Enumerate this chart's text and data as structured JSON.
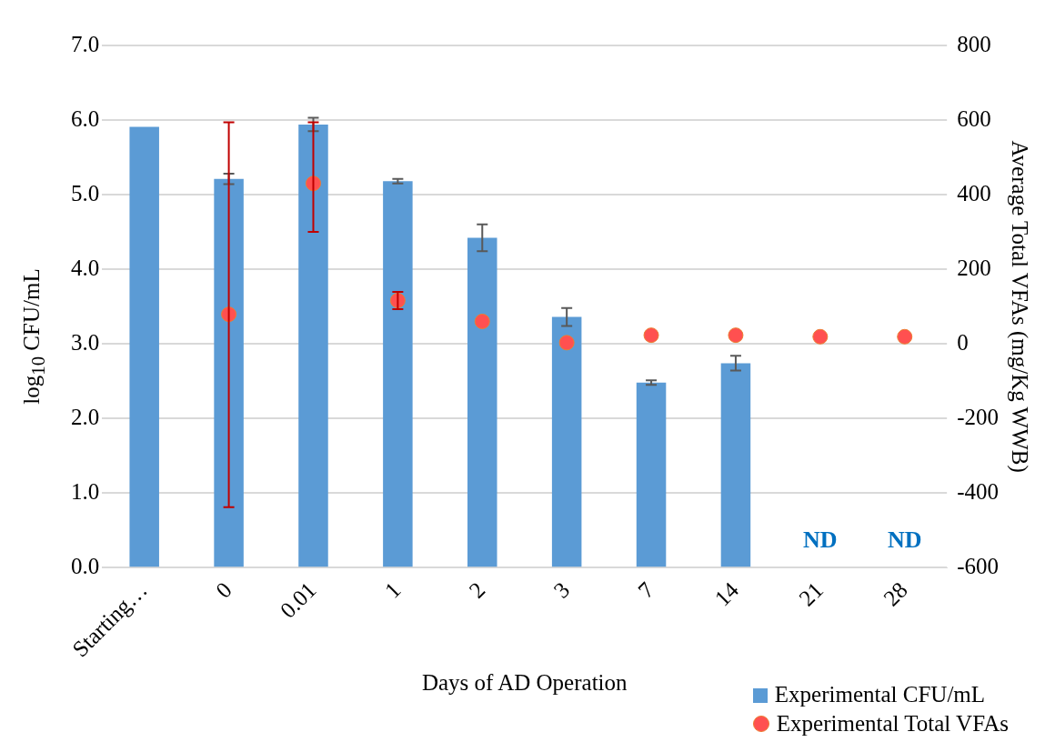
{
  "chart_data": {
    "type": "bar",
    "xlabel": "Days of AD Operation",
    "ylabel": "log$_{10}$ CFU/mL",
    "y2label": "Average Total VFAs (mg/Kg WWB)",
    "categories": [
      "Starting…",
      "0",
      "0.01",
      "1",
      "2",
      "3",
      "7",
      "14",
      "21",
      "28"
    ],
    "series": [
      {
        "name": "Experimental CFU/mL",
        "color": "#5b9bd5",
        "values": [
          5.91,
          5.21,
          5.94,
          5.18,
          4.42,
          3.36,
          2.48,
          2.74,
          0,
          0
        ],
        "errors": [
          null,
          0.07,
          0.09,
          0.03,
          0.18,
          0.12,
          0.03,
          0.1,
          null,
          null
        ]
      },
      {
        "name": "Experimental Total VFAs",
        "type": "scatter",
        "axis": "y2",
        "color": "#ff5050",
        "values": [
          null,
          79,
          430,
          116,
          60,
          3,
          23,
          23,
          19,
          19
        ],
        "errors": [
          null,
          [
            -438,
            594
          ],
          [
            300,
            594
          ],
          [
            93,
            139
          ],
          null,
          null,
          null,
          null,
          null,
          null
        ]
      }
    ],
    "ylim": [
      0,
      7
    ],
    "yticks": [
      {
        "value": 0,
        "label": "0.0"
      },
      {
        "value": 1,
        "label": "1.0"
      },
      {
        "value": 2,
        "label": "2.0"
      },
      {
        "value": 3,
        "label": "3.0"
      },
      {
        "value": 4,
        "label": "4.0"
      },
      {
        "value": 5,
        "label": "5.0"
      },
      {
        "value": 6,
        "label": "6.0"
      },
      {
        "value": 7,
        "label": "7.0"
      }
    ],
    "y2lim": [
      -600,
      800
    ],
    "y2ticks": [
      -600,
      -400,
      -200,
      0,
      200,
      400,
      600,
      800
    ],
    "annotations": [
      {
        "text": "ND",
        "x": "21",
        "y": 0
      },
      {
        "text": "ND",
        "x": "28",
        "y": 0
      }
    ],
    "grid": "y",
    "legend": "bottom right",
    "marker": "circle"
  }
}
